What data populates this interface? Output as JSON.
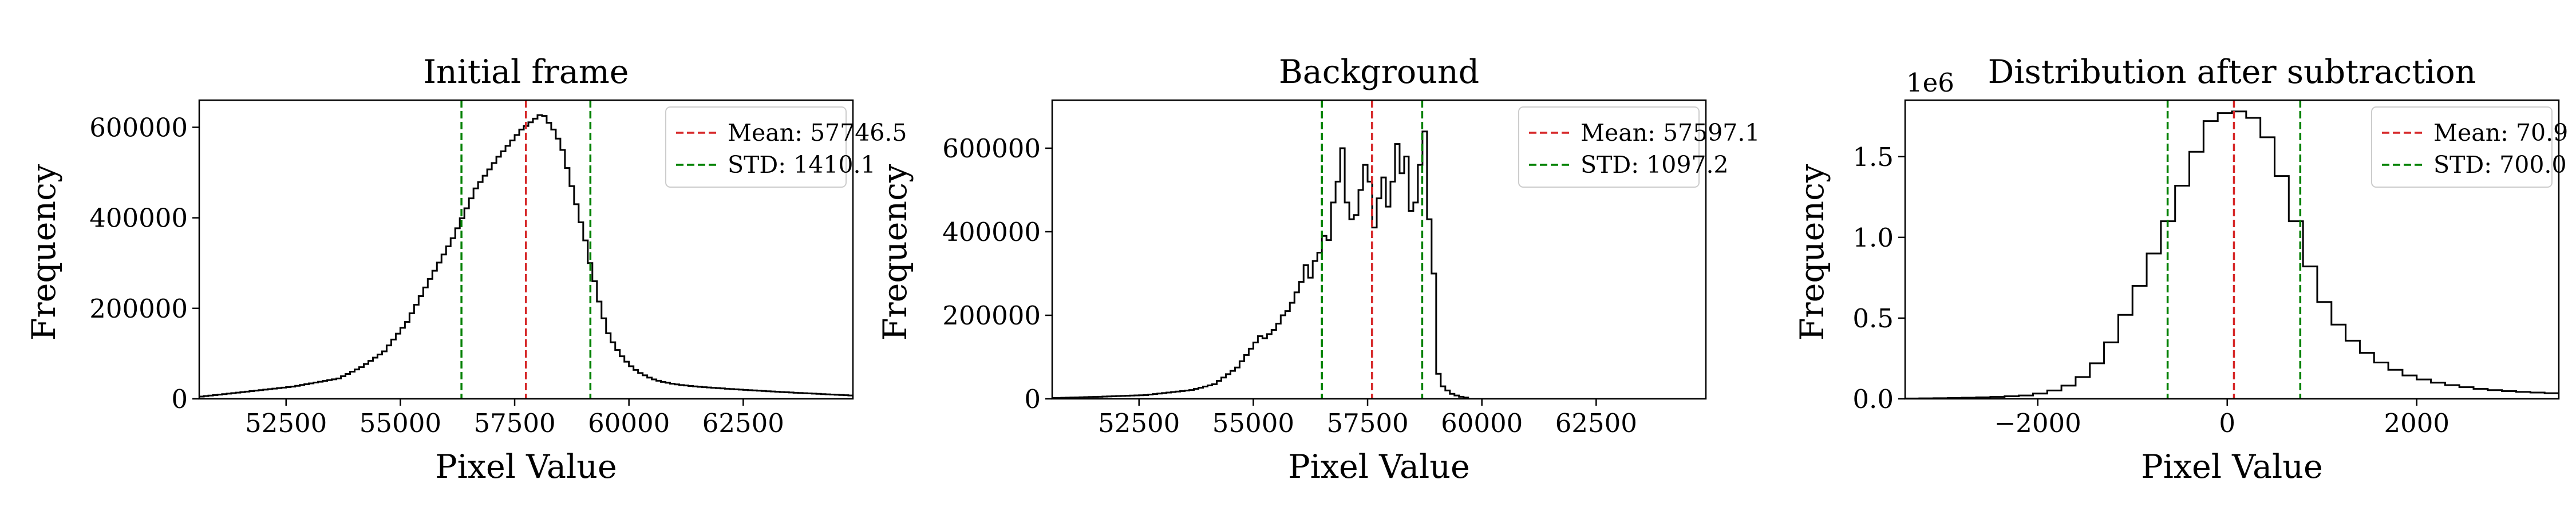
{
  "colors": {
    "mean_line": "#d62728",
    "std_line": "#008000",
    "histogram": "#000000"
  },
  "chart_data": [
    {
      "type": "histogram",
      "title": "Initial frame",
      "xlabel": "Pixel Value",
      "ylabel": "Frequency",
      "xlim": [
        50600,
        64900
      ],
      "ylim": [
        0,
        660000
      ],
      "xticks": [
        52500,
        55000,
        57500,
        60000,
        62500
      ],
      "xtick_labels": [
        "52500",
        "55000",
        "57500",
        "60000",
        "62500"
      ],
      "yticks": [
        0,
        200000,
        400000,
        600000
      ],
      "ytick_labels": [
        "0",
        "200000",
        "400000",
        "600000"
      ],
      "y_offset_label": "",
      "mean": 57746.5,
      "std": 1410.1,
      "std_lines": [
        56336.4,
        59156.6
      ],
      "legend": {
        "position": "upper right",
        "entries": [
          "Mean: 57746.5",
          "STD: 1410.1"
        ]
      },
      "bin_width": 100,
      "bins_start": 50600,
      "counts": [
        5000,
        6100,
        7200,
        8300,
        9400,
        10500,
        11600,
        12700,
        13800,
        14900,
        16000,
        17100,
        18200,
        19300,
        20400,
        21500,
        22600,
        23700,
        24800,
        25900,
        27000,
        28800,
        30600,
        32400,
        34200,
        36000,
        37800,
        39600,
        41400,
        43200,
        45000,
        50000,
        55000,
        60000,
        65000,
        70000,
        77000,
        84000,
        91000,
        98000,
        105000,
        118000,
        131000,
        144000,
        157000,
        170000,
        189000,
        208000,
        227000,
        246000,
        265000,
        283000,
        301000,
        319000,
        337000,
        355000,
        377000,
        399000,
        421000,
        443000,
        465000,
        479000,
        493000,
        507000,
        521000,
        535000,
        547000,
        559000,
        571000,
        583000,
        595000,
        603000,
        611000,
        619000,
        627000,
        625000,
        610000,
        595000,
        575000,
        550000,
        510000,
        470000,
        430000,
        390000,
        350000,
        300000,
        260000,
        215000,
        178000,
        145000,
        125000,
        108000,
        94000,
        82000,
        72000,
        64000,
        57000,
        52000,
        47000,
        43000,
        40000,
        37500,
        35500,
        33500,
        32000,
        30500,
        29500,
        28500,
        27500,
        26500,
        25800,
        25100,
        24400,
        23700,
        23000,
        22300,
        21600,
        21000,
        20400,
        19800,
        19200,
        18600,
        18000,
        17400,
        16800,
        16200,
        15600,
        15000,
        14500,
        14000,
        13500,
        13000,
        12500,
        12000,
        11500,
        11000,
        10500,
        10000,
        9500,
        9000,
        8500,
        8000,
        7500
      ]
    },
    {
      "type": "histogram",
      "title": "Background",
      "xlabel": "Pixel Value",
      "ylabel": "Frequency",
      "xlim": [
        50600,
        64900
      ],
      "ylim": [
        0,
        715000
      ],
      "xticks": [
        52500,
        55000,
        57500,
        60000,
        62500
      ],
      "xtick_labels": [
        "52500",
        "55000",
        "57500",
        "60000",
        "62500"
      ],
      "yticks": [
        0,
        200000,
        400000,
        600000
      ],
      "ytick_labels": [
        "0",
        "200000",
        "400000",
        "600000"
      ],
      "y_offset_label": "",
      "mean": 57597.1,
      "std": 1097.2,
      "std_lines": [
        56499.9,
        58694.3
      ],
      "legend": {
        "position": "upper right",
        "entries": [
          "Mean: 57597.1",
          "STD: 1097.2"
        ]
      },
      "bin_width": 100,
      "bins_start": 50600,
      "counts": [
        2000,
        2300,
        2600,
        2900,
        3200,
        3500,
        3800,
        4100,
        4400,
        4700,
        5000,
        5400,
        5800,
        6200,
        6600,
        7000,
        7400,
        7800,
        8200,
        8600,
        9000,
        10200,
        11400,
        12600,
        13800,
        15000,
        16200,
        17400,
        18600,
        19800,
        21000,
        23800,
        26600,
        29400,
        32200,
        35000,
        43000,
        51000,
        59000,
        67000,
        75000,
        90000,
        105000,
        120000,
        135000,
        150000,
        145000,
        155000,
        165000,
        180000,
        200000,
        210000,
        230000,
        255000,
        280000,
        320000,
        290000,
        330000,
        350000,
        390000,
        380000,
        470000,
        520000,
        600000,
        470000,
        430000,
        440000,
        500000,
        560000,
        520000,
        410000,
        480000,
        530000,
        460000,
        520000,
        610000,
        540000,
        580000,
        450000,
        470000,
        560000,
        640000,
        430000,
        300000,
        60000,
        30000,
        20000,
        12000,
        8000,
        5000,
        3000
      ]
    },
    {
      "type": "histogram",
      "title": "Distribution after subtraction",
      "xlabel": "Pixel Value",
      "ylabel": "Frequency",
      "xlim": [
        -3400,
        3500
      ],
      "ylim": [
        0,
        1850000
      ],
      "xticks": [
        -2000,
        0,
        2000
      ],
      "xtick_labels": [
        "−2000",
        "0",
        "2000"
      ],
      "yticks": [
        0,
        500000,
        1000000,
        1500000
      ],
      "ytick_labels": [
        "0.0",
        "0.5",
        "1.0",
        "1.5"
      ],
      "y_offset_label": "1e6",
      "mean": 70.9,
      "std": 700.0,
      "std_lines": [
        -629.1,
        770.9
      ],
      "legend": {
        "position": "upper right",
        "entries": [
          "Mean: 70.9",
          "STD: 700.0"
        ]
      },
      "bin_width": 150,
      "bins_start": -3400,
      "counts": [
        2000,
        3000,
        4000,
        5500,
        7000,
        9500,
        12000,
        16000,
        21000,
        33000,
        52000,
        82000,
        135000,
        220000,
        350000,
        520000,
        700000,
        900000,
        1100000,
        1320000,
        1530000,
        1720000,
        1770000,
        1780000,
        1740000,
        1620000,
        1380000,
        1100000,
        820000,
        600000,
        460000,
        360000,
        285000,
        225000,
        180000,
        145000,
        120000,
        100000,
        85000,
        72000,
        62000,
        54000,
        48000,
        43000,
        39000,
        35000,
        32000
      ]
    }
  ]
}
